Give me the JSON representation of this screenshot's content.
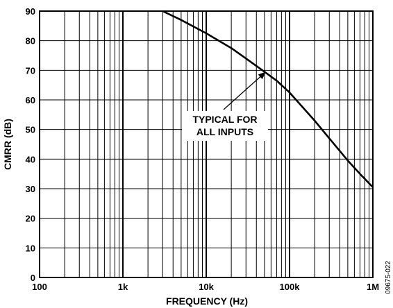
{
  "chart_data": {
    "type": "line",
    "title": "",
    "xlabel": "FREQUENCY (Hz)",
    "ylabel": "CMRR (dB)",
    "x_scale": "log",
    "xlim": [
      100,
      1000000
    ],
    "ylim": [
      0,
      90
    ],
    "grid": true,
    "x_tick_values": [
      100,
      1000,
      10000,
      100000,
      1000000
    ],
    "x_tick_labels": [
      "100",
      "1k",
      "10k",
      "100k",
      "1M"
    ],
    "y_ticks": [
      0,
      10,
      20,
      30,
      40,
      50,
      60,
      70,
      80,
      90
    ],
    "y_tick_labels": [
      "0",
      "10",
      "20",
      "30",
      "40",
      "50",
      "60",
      "70",
      "80",
      "90"
    ],
    "series": [
      {
        "name": "",
        "color": "#000000",
        "x": [
          3000,
          5000,
          10000,
          20000,
          30000,
          50000,
          70000,
          100000,
          200000,
          300000,
          500000,
          700000,
          1000000
        ],
        "y": [
          90,
          87,
          82.5,
          77.5,
          74,
          69.5,
          66.5,
          62.5,
          53,
          47,
          39.5,
          35,
          30.5
        ]
      }
    ],
    "annotations": [
      {
        "lines": [
          "TYPICAL FOR",
          "ALL INPUTS"
        ],
        "arrow_to": {
          "x": 52000,
          "y": 69.5
        }
      }
    ]
  },
  "figure_id": "09675-022"
}
